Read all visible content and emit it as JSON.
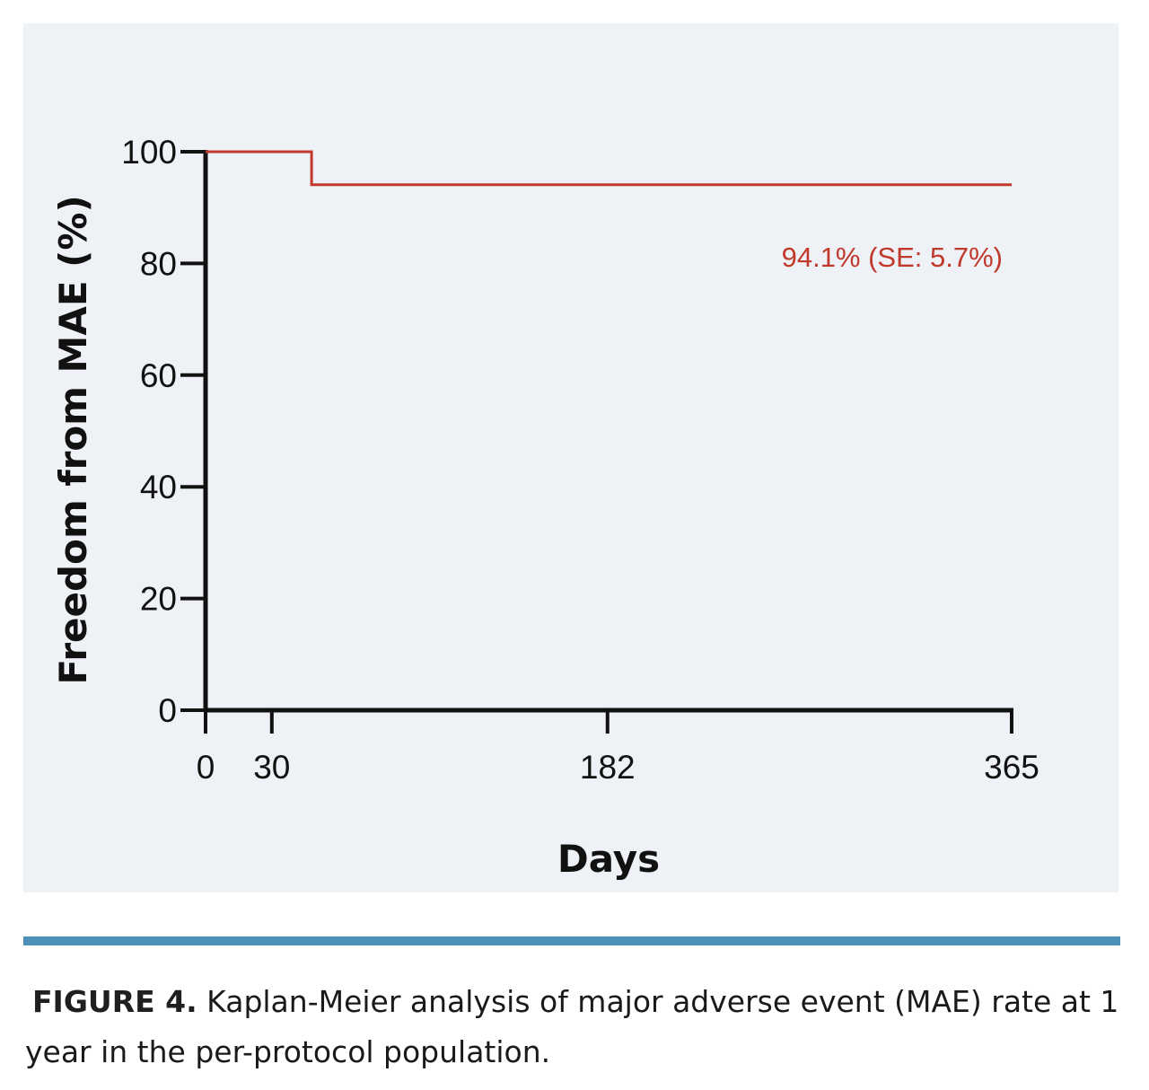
{
  "chart_data": {
    "type": "line",
    "step": true,
    "xlabel": "Days",
    "ylabel": "Freedom from MAE (%)",
    "xlim": [
      0,
      365
    ],
    "ylim": [
      0,
      100
    ],
    "x_ticks": [
      0,
      30,
      182,
      365
    ],
    "y_ticks": [
      0,
      20,
      40,
      60,
      80,
      100
    ],
    "series": [
      {
        "x": [
          0,
          48,
          48,
          365
        ],
        "y": [
          100,
          100,
          94.1,
          94.1
        ],
        "color": "#c0392b"
      }
    ],
    "annotation": {
      "text": "94.1% (SE: 5.7%)",
      "color": "#c0392b"
    },
    "grid": false,
    "background": "#eef1f6"
  },
  "caption": {
    "label": "FIGURE 4.",
    "text": "Kaplan-Meier analysis of major adverse event (MAE) rate at 1 year in the per-protocol population."
  },
  "colors": {
    "divider": "#4a90b8",
    "axis": "#111111"
  }
}
